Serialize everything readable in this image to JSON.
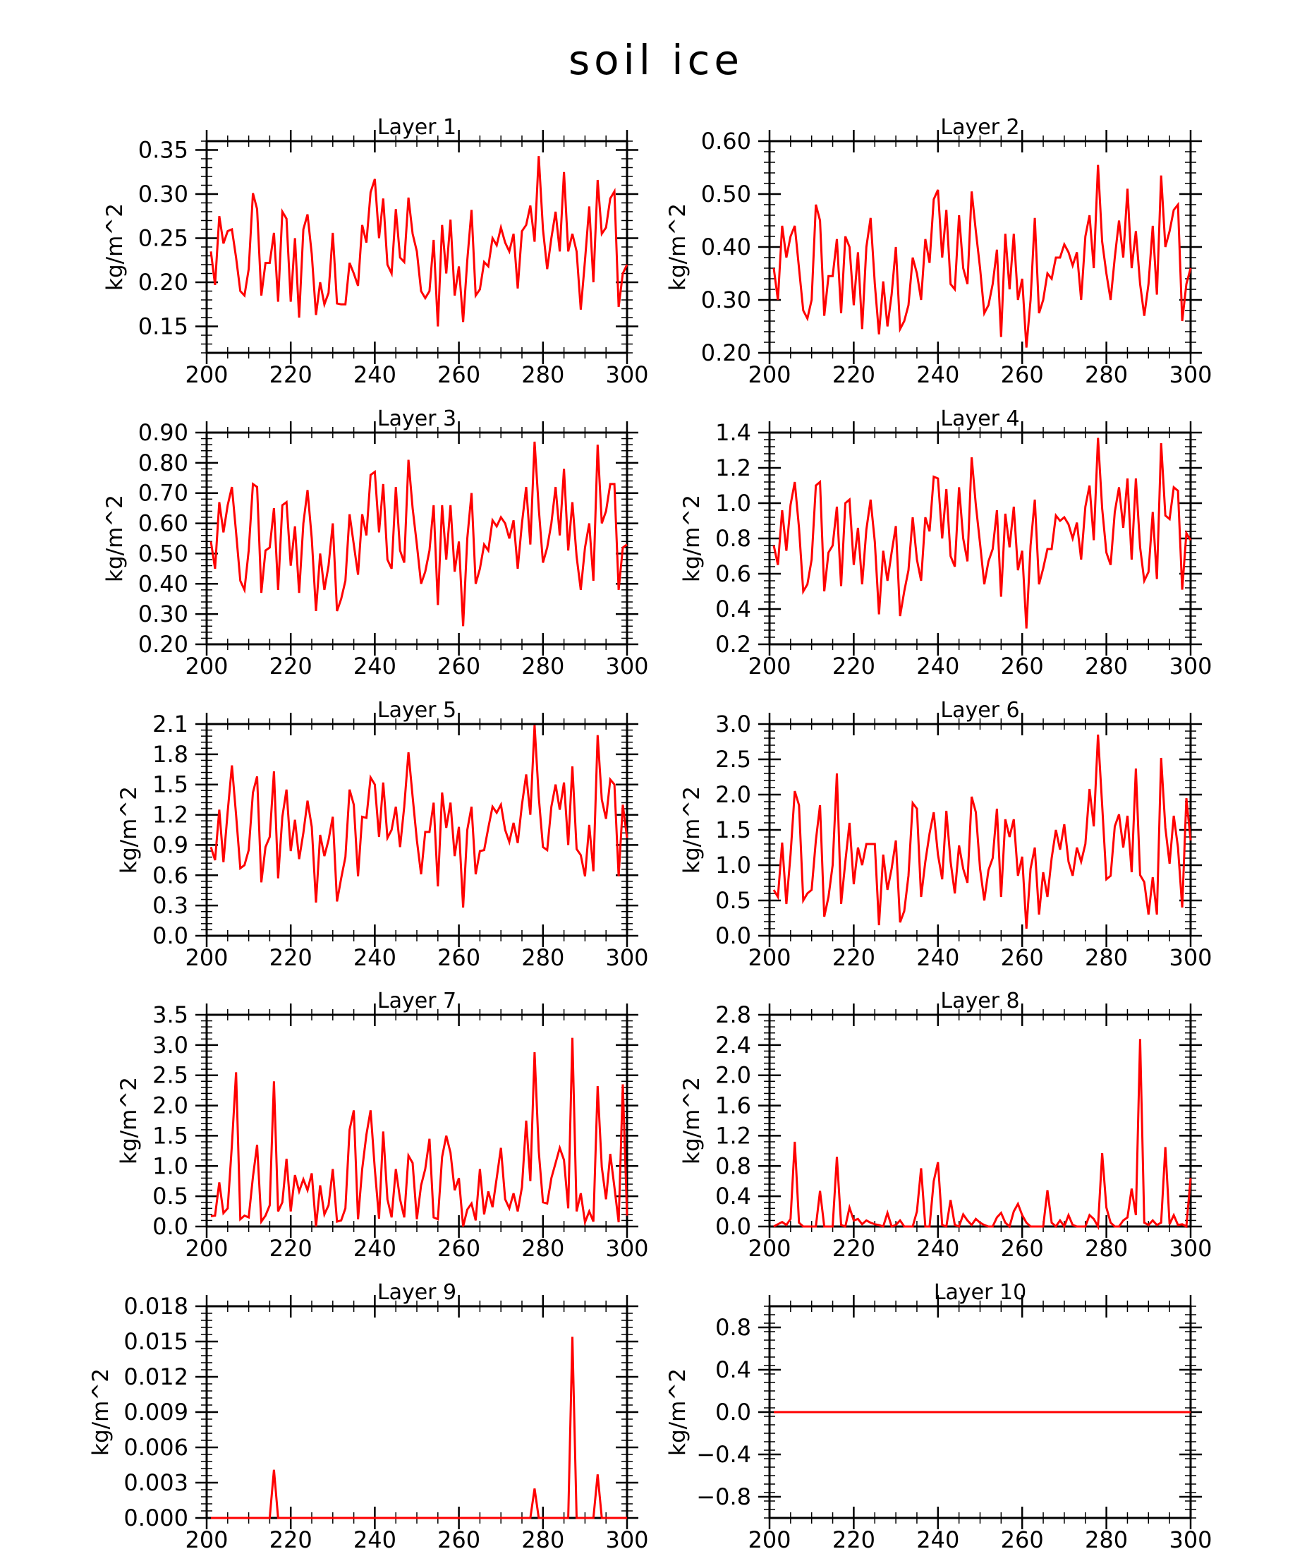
{
  "title": "soil ice",
  "colors": {
    "series": "#ff0000",
    "axis": "#000000"
  },
  "chart_data": [
    {
      "type": "line",
      "title": "Layer 1",
      "ylabel": "kg/m^2",
      "xlim": [
        200,
        300
      ],
      "ylim": [
        0.12,
        0.36
      ],
      "xticks": [
        "200",
        "220",
        "240",
        "260",
        "280",
        "300"
      ],
      "yticks": [
        "0.15",
        "0.20",
        "0.25",
        "0.30",
        "0.35"
      ],
      "ytick_values": [
        0.15,
        0.2,
        0.25,
        0.3,
        0.35
      ],
      "x_start": 201,
      "values": [
        0.235,
        0.197,
        0.275,
        0.244,
        0.258,
        0.26,
        0.228,
        0.19,
        0.185,
        0.215,
        0.301,
        0.283,
        0.185,
        0.222,
        0.222,
        0.256,
        0.178,
        0.28,
        0.272,
        0.178,
        0.25,
        0.16,
        0.26,
        0.277,
        0.232,
        0.163,
        0.2,
        0.175,
        0.188,
        0.256,
        0.176,
        0.175,
        0.175,
        0.222,
        0.21,
        0.196,
        0.265,
        0.245,
        0.302,
        0.317,
        0.25,
        0.295,
        0.22,
        0.21,
        0.283,
        0.228,
        0.223,
        0.296,
        0.255,
        0.235,
        0.19,
        0.182,
        0.19,
        0.248,
        0.15,
        0.265,
        0.21,
        0.271,
        0.185,
        0.218,
        0.155,
        0.225,
        0.282,
        0.185,
        0.192,
        0.223,
        0.218,
        0.25,
        0.242,
        0.262,
        0.245,
        0.235,
        0.255,
        0.193,
        0.258,
        0.265,
        0.287,
        0.246,
        0.343,
        0.26,
        0.215,
        0.25,
        0.28,
        0.235,
        0.325,
        0.235,
        0.255,
        0.235,
        0.169,
        0.225,
        0.286,
        0.2,
        0.316,
        0.255,
        0.262,
        0.295,
        0.303,
        0.172,
        0.21,
        0.22
      ]
    },
    {
      "type": "line",
      "title": "Layer 2",
      "ylabel": "kg/m^2",
      "xlim": [
        200,
        300
      ],
      "ylim": [
        0.2,
        0.6
      ],
      "xticks": [
        "200",
        "220",
        "240",
        "260",
        "280",
        "300"
      ],
      "yticks": [
        "0.20",
        "0.30",
        "0.40",
        "0.50",
        "0.60"
      ],
      "ytick_values": [
        0.2,
        0.3,
        0.4,
        0.5,
        0.6
      ],
      "x_start": 201,
      "values": [
        0.36,
        0.3,
        0.44,
        0.38,
        0.42,
        0.44,
        0.36,
        0.28,
        0.265,
        0.3,
        0.48,
        0.45,
        0.27,
        0.345,
        0.345,
        0.415,
        0.275,
        0.42,
        0.4,
        0.29,
        0.39,
        0.245,
        0.4,
        0.455,
        0.33,
        0.235,
        0.335,
        0.25,
        0.31,
        0.4,
        0.245,
        0.26,
        0.29,
        0.38,
        0.35,
        0.3,
        0.415,
        0.37,
        0.49,
        0.508,
        0.38,
        0.47,
        0.33,
        0.32,
        0.46,
        0.36,
        0.33,
        0.505,
        0.43,
        0.36,
        0.275,
        0.29,
        0.33,
        0.395,
        0.23,
        0.425,
        0.32,
        0.425,
        0.3,
        0.34,
        0.21,
        0.3,
        0.455,
        0.275,
        0.3,
        0.35,
        0.34,
        0.38,
        0.38,
        0.405,
        0.39,
        0.365,
        0.39,
        0.3,
        0.42,
        0.46,
        0.36,
        0.555,
        0.41,
        0.35,
        0.3,
        0.38,
        0.45,
        0.38,
        0.51,
        0.36,
        0.43,
        0.33,
        0.27,
        0.33,
        0.44,
        0.31,
        0.535,
        0.4,
        0.43,
        0.47,
        0.48,
        0.26,
        0.33,
        0.36
      ]
    },
    {
      "type": "line",
      "title": "Layer 3",
      "ylabel": "kg/m^2",
      "xlim": [
        200,
        300
      ],
      "ylim": [
        0.2,
        0.9
      ],
      "xticks": [
        "200",
        "220",
        "240",
        "260",
        "280",
        "300"
      ],
      "yticks": [
        "0.20",
        "0.30",
        "0.40",
        "0.50",
        "0.60",
        "0.70",
        "0.80",
        "0.90"
      ],
      "ytick_values": [
        0.2,
        0.3,
        0.4,
        0.5,
        0.6,
        0.7,
        0.8,
        0.9
      ],
      "x_start": 201,
      "values": [
        0.54,
        0.45,
        0.67,
        0.57,
        0.66,
        0.72,
        0.57,
        0.41,
        0.38,
        0.51,
        0.73,
        0.72,
        0.37,
        0.51,
        0.52,
        0.65,
        0.38,
        0.66,
        0.67,
        0.46,
        0.59,
        0.37,
        0.6,
        0.71,
        0.55,
        0.31,
        0.5,
        0.38,
        0.46,
        0.6,
        0.31,
        0.35,
        0.41,
        0.63,
        0.53,
        0.43,
        0.63,
        0.56,
        0.76,
        0.77,
        0.57,
        0.73,
        0.48,
        0.45,
        0.72,
        0.51,
        0.47,
        0.81,
        0.65,
        0.53,
        0.4,
        0.44,
        0.51,
        0.66,
        0.33,
        0.66,
        0.48,
        0.66,
        0.44,
        0.54,
        0.26,
        0.55,
        0.7,
        0.4,
        0.45,
        0.53,
        0.51,
        0.61,
        0.59,
        0.62,
        0.6,
        0.55,
        0.61,
        0.45,
        0.6,
        0.72,
        0.53,
        0.87,
        0.65,
        0.47,
        0.52,
        0.6,
        0.72,
        0.56,
        0.78,
        0.51,
        0.67,
        0.49,
        0.38,
        0.52,
        0.6,
        0.41,
        0.86,
        0.6,
        0.64,
        0.73,
        0.73,
        0.38,
        0.52,
        0.53
      ]
    },
    {
      "type": "line",
      "title": "Layer 4",
      "ylabel": "kg/m^2",
      "xlim": [
        200,
        300
      ],
      "ylim": [
        0.2,
        1.4
      ],
      "xticks": [
        "200",
        "220",
        "240",
        "260",
        "280",
        "300"
      ],
      "yticks": [
        "0.2",
        "0.4",
        "0.6",
        "0.8",
        "1.0",
        "1.2",
        "1.4"
      ],
      "ytick_values": [
        0.2,
        0.4,
        0.6,
        0.8,
        1.0,
        1.2,
        1.4
      ],
      "x_start": 201,
      "values": [
        0.76,
        0.65,
        0.96,
        0.73,
        0.99,
        1.12,
        0.86,
        0.5,
        0.54,
        0.68,
        1.1,
        1.12,
        0.5,
        0.72,
        0.76,
        0.98,
        0.53,
        1.0,
        1.02,
        0.65,
        0.86,
        0.54,
        0.85,
        1.02,
        0.78,
        0.37,
        0.73,
        0.56,
        0.72,
        0.87,
        0.36,
        0.5,
        0.62,
        0.92,
        0.68,
        0.56,
        0.92,
        0.84,
        1.15,
        1.14,
        0.8,
        1.08,
        0.7,
        0.64,
        1.09,
        0.8,
        0.67,
        1.26,
        0.99,
        0.77,
        0.54,
        0.67,
        0.74,
        0.96,
        0.47,
        0.94,
        0.75,
        0.98,
        0.62,
        0.73,
        0.29,
        0.76,
        1.02,
        0.54,
        0.63,
        0.74,
        0.74,
        0.93,
        0.9,
        0.92,
        0.88,
        0.8,
        0.89,
        0.68,
        0.98,
        1.1,
        0.79,
        1.37,
        0.97,
        0.72,
        0.65,
        0.95,
        1.09,
        0.86,
        1.14,
        0.68,
        1.14,
        0.75,
        0.56,
        0.61,
        0.95,
        0.57,
        1.34,
        0.93,
        0.91,
        1.09,
        1.07,
        0.51,
        0.83,
        0.79
      ]
    },
    {
      "type": "line",
      "title": "Layer 5",
      "ylabel": "kg/m^2",
      "xlim": [
        200,
        300
      ],
      "ylim": [
        0.0,
        2.1
      ],
      "xticks": [
        "200",
        "220",
        "240",
        "260",
        "280",
        "300"
      ],
      "yticks": [
        "0.0",
        "0.3",
        "0.6",
        "0.9",
        "1.2",
        "1.5",
        "1.8",
        "2.1"
      ],
      "ytick_values": [
        0.0,
        0.3,
        0.6,
        0.9,
        1.2,
        1.5,
        1.8,
        2.1
      ],
      "x_start": 201,
      "values": [
        0.88,
        0.75,
        1.25,
        0.73,
        1.23,
        1.69,
        1.2,
        0.67,
        0.7,
        0.85,
        1.42,
        1.58,
        0.53,
        0.88,
        0.98,
        1.63,
        0.57,
        1.18,
        1.45,
        0.84,
        1.15,
        0.76,
        1.02,
        1.34,
        1.08,
        0.33,
        1.0,
        0.79,
        0.95,
        1.18,
        0.34,
        0.57,
        0.78,
        1.45,
        1.3,
        0.59,
        1.18,
        1.17,
        1.57,
        1.5,
        0.98,
        1.52,
        0.97,
        1.05,
        1.28,
        0.88,
        1.28,
        1.82,
        1.38,
        0.95,
        0.61,
        1.03,
        1.03,
        1.32,
        0.49,
        1.42,
        1.07,
        1.32,
        0.79,
        1.08,
        0.28,
        1.05,
        1.28,
        0.61,
        0.84,
        0.85,
        1.07,
        1.28,
        1.22,
        1.3,
        1.05,
        0.93,
        1.12,
        0.92,
        1.3,
        1.6,
        1.2,
        2.09,
        1.38,
        0.88,
        0.85,
        1.28,
        1.5,
        1.25,
        1.52,
        0.9,
        1.68,
        0.86,
        0.8,
        0.59,
        1.1,
        0.64,
        1.99,
        1.35,
        1.16,
        1.55,
        1.5,
        0.59,
        1.3,
        0.97
      ]
    },
    {
      "type": "line",
      "title": "Layer 6",
      "ylabel": "kg/m^2",
      "xlim": [
        200,
        300
      ],
      "ylim": [
        0.0,
        3.0
      ],
      "xticks": [
        "200",
        "220",
        "240",
        "260",
        "280",
        "300"
      ],
      "yticks": [
        "0.0",
        "0.5",
        "1.0",
        "1.5",
        "2.0",
        "2.5",
        "3.0"
      ],
      "ytick_values": [
        0.0,
        0.5,
        1.0,
        1.5,
        2.0,
        2.5,
        3.0
      ],
      "x_start": 201,
      "values": [
        0.65,
        0.55,
        1.32,
        0.45,
        1.15,
        2.05,
        1.85,
        0.5,
        0.6,
        0.65,
        1.35,
        1.85,
        0.27,
        0.55,
        1.0,
        2.3,
        0.45,
        1.05,
        1.6,
        0.73,
        1.25,
        1.0,
        1.3,
        1.3,
        1.3,
        0.15,
        1.15,
        0.65,
        0.95,
        1.35,
        0.19,
        0.35,
        0.85,
        1.88,
        1.8,
        0.55,
        1.05,
        1.45,
        1.75,
        1.15,
        0.8,
        1.77,
        1.05,
        0.6,
        1.28,
        0.95,
        0.75,
        1.97,
        1.75,
        0.95,
        0.5,
        0.93,
        1.1,
        1.8,
        0.55,
        1.65,
        1.4,
        1.65,
        0.85,
        1.12,
        0.1,
        0.95,
        1.25,
        0.3,
        0.9,
        0.55,
        1.1,
        1.5,
        1.22,
        1.58,
        1.05,
        0.85,
        1.25,
        1.05,
        1.3,
        2.08,
        1.55,
        2.85,
        1.85,
        0.8,
        0.85,
        1.55,
        1.72,
        1.25,
        1.7,
        0.9,
        2.37,
        0.86,
        0.76,
        0.3,
        0.83,
        0.3,
        2.52,
        1.53,
        1.02,
        1.7,
        1.25,
        0.4,
        1.95,
        1.35
      ]
    },
    {
      "type": "line",
      "title": "Layer 7",
      "ylabel": "kg/m^2",
      "xlim": [
        200,
        300
      ],
      "ylim": [
        0.0,
        3.5
      ],
      "xticks": [
        "200",
        "220",
        "240",
        "260",
        "280",
        "300"
      ],
      "yticks": [
        "0.0",
        "0.5",
        "1.0",
        "1.5",
        "2.0",
        "2.5",
        "3.0",
        "3.5"
      ],
      "ytick_values": [
        0.0,
        0.5,
        1.0,
        1.5,
        2.0,
        2.5,
        3.0,
        3.5
      ],
      "x_start": 201,
      "values": [
        0.17,
        0.18,
        0.73,
        0.22,
        0.3,
        1.35,
        2.55,
        0.12,
        0.18,
        0.15,
        0.82,
        1.35,
        0.08,
        0.18,
        0.35,
        2.4,
        0.25,
        0.4,
        1.12,
        0.25,
        0.85,
        0.58,
        0.78,
        0.6,
        0.88,
        0.0,
        0.68,
        0.2,
        0.35,
        0.95,
        0.08,
        0.1,
        0.3,
        1.6,
        1.92,
        0.12,
        0.95,
        1.52,
        1.92,
        0.95,
        0.13,
        1.57,
        0.45,
        0.15,
        0.95,
        0.45,
        0.15,
        1.17,
        1.05,
        0.12,
        0.68,
        0.95,
        1.45,
        0.15,
        0.12,
        1.15,
        1.5,
        1.22,
        0.6,
        0.8,
        0.0,
        0.28,
        0.38,
        0.1,
        0.95,
        0.2,
        0.58,
        0.32,
        0.8,
        1.3,
        0.45,
        0.3,
        0.55,
        0.25,
        0.65,
        1.75,
        0.75,
        2.88,
        1.25,
        0.4,
        0.38,
        0.8,
        1.05,
        1.3,
        1.1,
        0.3,
        3.12,
        0.25,
        0.55,
        0.07,
        0.25,
        0.08,
        2.32,
        0.98,
        0.45,
        1.2,
        0.65,
        0.07,
        2.35,
        0.18
      ]
    },
    {
      "type": "line",
      "title": "Layer 8",
      "ylabel": "kg/m^2",
      "xlim": [
        200,
        300
      ],
      "ylim": [
        0.0,
        2.8
      ],
      "xticks": [
        "200",
        "220",
        "240",
        "260",
        "280",
        "300"
      ],
      "yticks": [
        "0.0",
        "0.4",
        "0.8",
        "1.2",
        "1.6",
        "2.0",
        "2.4",
        "2.8"
      ],
      "ytick_values": [
        0.0,
        0.4,
        0.8,
        1.2,
        1.6,
        2.0,
        2.4,
        2.8
      ],
      "x_start": 201,
      "values": [
        0.0,
        0.03,
        0.06,
        0.02,
        0.1,
        1.12,
        0.05,
        0.0,
        0.0,
        0.0,
        0.0,
        0.47,
        0.0,
        0.0,
        0.0,
        0.92,
        0.02,
        0.0,
        0.25,
        0.08,
        0.1,
        0.03,
        0.08,
        0.05,
        0.03,
        0.02,
        0.0,
        0.18,
        0.0,
        0.02,
        0.08,
        0.0,
        0.0,
        0.0,
        0.2,
        0.77,
        0.0,
        0.0,
        0.6,
        0.85,
        0.02,
        0.0,
        0.35,
        0.02,
        0.0,
        0.16,
        0.08,
        0.02,
        0.1,
        0.05,
        0.02,
        0.0,
        0.0,
        0.12,
        0.18,
        0.05,
        0.0,
        0.2,
        0.3,
        0.15,
        0.05,
        0.0,
        0.0,
        0.0,
        0.0,
        0.48,
        0.05,
        0.0,
        0.08,
        0.0,
        0.15,
        0.02,
        0.0,
        0.0,
        0.0,
        0.15,
        0.1,
        0.0,
        0.97,
        0.25,
        0.05,
        0.0,
        0.0,
        0.08,
        0.12,
        0.5,
        0.15,
        2.48,
        0.05,
        0.02,
        0.08,
        0.02,
        0.05,
        1.05,
        0.03,
        0.15,
        0.02,
        0.03,
        0.0,
        0.64
      ]
    },
    {
      "type": "line",
      "title": "Layer 9",
      "ylabel": "kg/m^2",
      "xlim": [
        200,
        300
      ],
      "ylim": [
        0.0,
        0.018
      ],
      "xticks": [
        "200",
        "220",
        "240",
        "260",
        "280",
        "300"
      ],
      "yticks": [
        "0.000",
        "0.003",
        "0.006",
        "0.009",
        "0.012",
        "0.015",
        "0.018"
      ],
      "ytick_values": [
        0.0,
        0.003,
        0.006,
        0.009,
        0.012,
        0.015,
        0.018
      ],
      "x_start": 201,
      "values": [
        0,
        0,
        0,
        0,
        0,
        0,
        0,
        0,
        0,
        0,
        0,
        0,
        0,
        0,
        0,
        0.0041,
        0,
        0,
        0,
        0,
        0,
        0,
        0,
        0,
        0,
        0,
        0,
        0,
        0,
        0,
        0,
        0,
        0,
        0,
        0,
        0,
        0,
        0,
        0,
        0,
        0,
        0,
        0,
        0,
        0,
        0,
        0,
        0,
        0,
        0,
        0,
        0,
        0,
        0,
        0,
        0,
        0,
        0,
        0,
        0,
        0,
        0,
        0,
        0,
        0,
        0,
        0,
        0,
        0,
        0,
        0,
        0,
        0,
        0,
        0,
        0,
        0,
        0.0025,
        0,
        0,
        0,
        0,
        0,
        0,
        0,
        0,
        0.0154,
        0,
        0,
        0,
        0,
        0,
        0.0037,
        0,
        0,
        0,
        0,
        0,
        0,
        0
      ]
    },
    {
      "type": "line",
      "title": "Layer 10",
      "ylabel": "kg/m^2",
      "xlim": [
        200,
        300
      ],
      "ylim": [
        -1.0,
        1.0
      ],
      "xticks": [
        "200",
        "220",
        "240",
        "260",
        "280",
        "300"
      ],
      "yticks": [
        "−0.8",
        "−0.4",
        "0.0",
        "0.4",
        "0.8"
      ],
      "ytick_values": [
        -0.8,
        -0.4,
        0.0,
        0.4,
        0.8
      ],
      "x_start": 201,
      "values": [
        0,
        0,
        0,
        0,
        0,
        0,
        0,
        0,
        0,
        0,
        0,
        0,
        0,
        0,
        0,
        0,
        0,
        0,
        0,
        0,
        0,
        0,
        0,
        0,
        0,
        0,
        0,
        0,
        0,
        0,
        0,
        0,
        0,
        0,
        0,
        0,
        0,
        0,
        0,
        0,
        0,
        0,
        0,
        0,
        0,
        0,
        0,
        0,
        0,
        0,
        0,
        0,
        0,
        0,
        0,
        0,
        0,
        0,
        0,
        0,
        0,
        0,
        0,
        0,
        0,
        0,
        0,
        0,
        0,
        0,
        0,
        0,
        0,
        0,
        0,
        0,
        0,
        0,
        0,
        0,
        0,
        0,
        0,
        0,
        0,
        0,
        0,
        0,
        0,
        0,
        0,
        0,
        0,
        0,
        0,
        0,
        0,
        0,
        0,
        0
      ]
    }
  ]
}
